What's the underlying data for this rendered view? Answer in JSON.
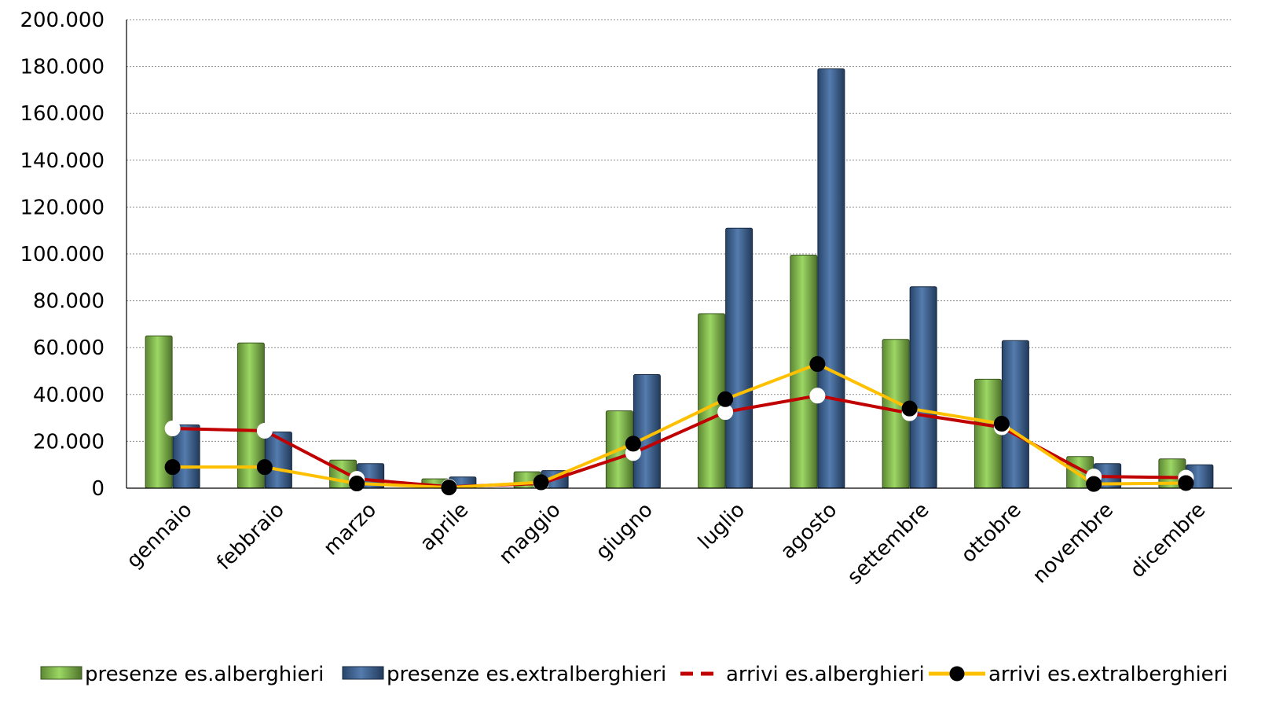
{
  "chart_data": {
    "type": "bar",
    "categories": [
      "gennaio",
      "febbraio",
      "marzo",
      "aprile",
      "maggio",
      "giugno",
      "luglio",
      "agosto",
      "settembre",
      "ottobre",
      "novembre",
      "dicembre"
    ],
    "series": [
      {
        "name": "presenze es.alberghieri",
        "type": "bar",
        "color": "#8fd14f",
        "values": [
          65000,
          62000,
          12000,
          4000,
          7000,
          33000,
          74500,
          99500,
          63500,
          46500,
          13500,
          12500
        ]
      },
      {
        "name": "presenze es.extralberghieri",
        "type": "bar",
        "color": "#3d6aa3",
        "values": [
          27000,
          24000,
          10500,
          4800,
          7500,
          48500,
          111000,
          179000,
          86000,
          63000,
          10500,
          10000
        ]
      },
      {
        "name": "arrivi es.alberghieri",
        "type": "line",
        "color": "#c00000",
        "marker": "white",
        "values": [
          25500,
          24500,
          4000,
          600,
          2000,
          15000,
          32500,
          39500,
          32000,
          26000,
          5000,
          4500
        ]
      },
      {
        "name": "arrivi es.extralberghieri",
        "type": "line",
        "color": "#ffc000",
        "marker": "black",
        "values": [
          9000,
          9000,
          2000,
          300,
          2500,
          19000,
          38000,
          53000,
          34000,
          27500,
          1800,
          2200
        ]
      }
    ],
    "yticks": [
      "200.000",
      "180.000",
      "160.000",
      "140.000",
      "120.000",
      "100.000",
      "80.000",
      "60.000",
      "40.000",
      "20.000",
      "0"
    ],
    "ylim": [
      0,
      200000
    ],
    "grid": true,
    "legend_position": "bottom"
  }
}
